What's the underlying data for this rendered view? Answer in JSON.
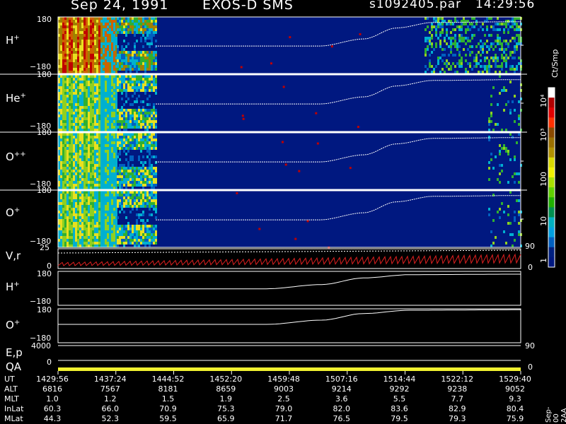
{
  "header": {
    "date": "Sep 24, 1991",
    "instrument": "EXOS-D SMS",
    "file": "s1092405.par",
    "time": "14:29:56"
  },
  "colorbar": {
    "title": "Ct/Smp",
    "ticks": [
      "10⁴",
      "10³",
      "100",
      "10",
      "1"
    ],
    "colors": [
      "#ffffff",
      "#b00000",
      "#e00000",
      "#ff3000",
      "#8a4a00",
      "#9a7000",
      "#b09000",
      "#d8d800",
      "#f0f000",
      "#a8e000",
      "#60d000",
      "#20b000",
      "#009050",
      "#00b0c0",
      "#00a0e0",
      "#0060c0",
      "#002080",
      "#001880"
    ]
  },
  "panels": [
    {
      "name": "h-plus",
      "label": "H",
      "sup": "+",
      "ymax": "180",
      "ymin": "−180"
    },
    {
      "name": "he-plus",
      "label": "He",
      "sup": "+",
      "ymax": "180",
      "ymin": "−180"
    },
    {
      "name": "o-plus-plus",
      "label": "O",
      "sup": "++",
      "ymax": "180",
      "ymin": "−180"
    },
    {
      "name": "o-plus",
      "label": "O",
      "sup": "+",
      "ymax": "180",
      "ymin": "−180"
    }
  ],
  "line_panels": {
    "vr": {
      "label": "V,r",
      "ymax": "25",
      "ymin": "0",
      "right_max": "90",
      "right_min": "0"
    },
    "h": {
      "label": "H",
      "sup": "+",
      "ymax": "180",
      "ymin": "−180"
    },
    "o": {
      "label": "O",
      "sup": "+",
      "ymax": "180",
      "ymin": "−180"
    },
    "ep": {
      "label": "E,p",
      "ymax": "4000",
      "ymin": "0",
      "right_max": "90"
    },
    "qa": {
      "label": "QA",
      "right_min": "0"
    }
  },
  "side_text": "Sep-00 2AA",
  "table": {
    "row_labels": [
      "UT",
      "ALT",
      "MLT",
      "InLat",
      "MLat"
    ],
    "columns": [
      [
        "1429:56",
        "6816",
        "1.0",
        "60.3",
        "44.3"
      ],
      [
        "1437:24",
        "7567",
        "1.2",
        "66.0",
        "52.3"
      ],
      [
        "1444:52",
        "8181",
        "1.5",
        "70.9",
        "59.5"
      ],
      [
        "1452:20",
        "8659",
        "1.9",
        "75.3",
        "65.9"
      ],
      [
        "1459:48",
        "9003",
        "2.5",
        "79.0",
        "71.7"
      ],
      [
        "1507:16",
        "9214",
        "3.6",
        "82.0",
        "76.5"
      ],
      [
        "1514:44",
        "9292",
        "5.5",
        "83.6",
        "79.5"
      ],
      [
        "1522:12",
        "9238",
        "7.7",
        "82.9",
        "79.3"
      ],
      [
        "1529:40",
        "9052",
        "9.3",
        "80.4",
        "75.9"
      ]
    ]
  },
  "chart_data": {
    "type": "heatmap",
    "title": "Sep 24, 1991   EXOS-D SMS",
    "xlabel": "UT",
    "x_ticks": [
      "1429:56",
      "1437:24",
      "1444:52",
      "1452:20",
      "1459:48",
      "1507:16",
      "1514:44",
      "1522:12",
      "1529:40"
    ],
    "ylim": [
      -180,
      180
    ],
    "species": [
      "H+",
      "He+",
      "O++",
      "O+"
    ],
    "colorbar_label": "Ct/Smp",
    "colorbar_ticks": [
      1,
      10,
      100,
      1000,
      10000
    ],
    "pitch_angle_trace": [
      {
        "ut": "1429:56",
        "deg": -5
      },
      {
        "ut": "1452:20",
        "deg": -5
      },
      {
        "ut": "1459:48",
        "deg": 40
      },
      {
        "ut": "1507:16",
        "deg": 110
      },
      {
        "ut": "1514:44",
        "deg": 145
      },
      {
        "ut": "1529:40",
        "deg": 150
      }
    ],
    "vr_series_color": "#e02020",
    "qa_color": "#f0f030"
  }
}
